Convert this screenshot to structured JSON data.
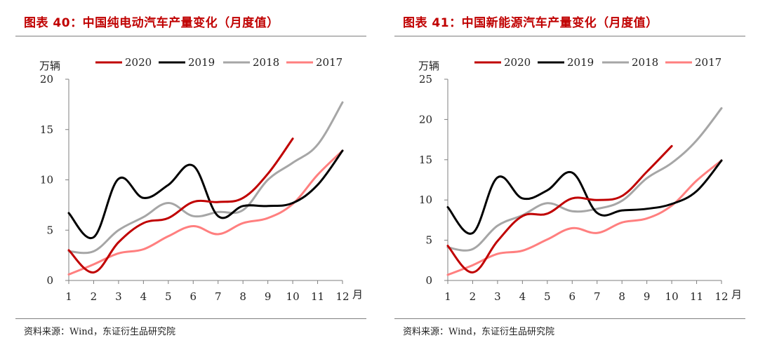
{
  "charts": [
    {
      "title": "图表 40：中国纯电动汽车产量变化（月度值）",
      "source": "资料来源：Wind，东证衍生品研究院",
      "chart_data": {
        "type": "line",
        "title": "图表 40：中国纯电动汽车产量变化（月度值）",
        "ylabel": "万辆",
        "xlabel": "月",
        "ylim": [
          0,
          20
        ],
        "yticks": [
          0,
          5,
          10,
          15,
          20
        ],
        "x": [
          1,
          2,
          3,
          4,
          5,
          6,
          7,
          8,
          9,
          10,
          11,
          12
        ],
        "legend_position": "top",
        "grid": false,
        "series": [
          {
            "name": "2020",
            "color": "#c00000",
            "values": [
              3.0,
              0.8,
              3.8,
              5.7,
              6.2,
              7.8,
              7.8,
              8.2,
              10.6,
              14.1,
              null,
              null
            ]
          },
          {
            "name": "2019",
            "color": "#000000",
            "values": [
              6.7,
              4.3,
              10.1,
              8.2,
              9.5,
              11.4,
              6.4,
              7.4,
              7.4,
              7.7,
              9.5,
              12.9
            ]
          },
          {
            "name": "2018",
            "color": "#a6a6a6",
            "values": [
              2.9,
              2.9,
              5.0,
              6.3,
              7.7,
              6.4,
              6.8,
              7.0,
              10.0,
              11.7,
              13.5,
              17.7
            ]
          },
          {
            "name": "2017",
            "color": "#ff7f7f",
            "values": [
              0.6,
              1.6,
              2.7,
              3.1,
              4.4,
              5.4,
              4.6,
              5.7,
              6.2,
              7.6,
              10.5,
              12.9
            ]
          }
        ]
      }
    },
    {
      "title": "图表 41：中国新能源汽车产量变化（月度值）",
      "source": "资料来源：Wind，东证衍生品研究院",
      "chart_data": {
        "type": "line",
        "title": "图表 41：中国新能源汽车产量变化（月度值）",
        "ylabel": "万辆",
        "xlabel": "月",
        "ylim": [
          0,
          25
        ],
        "yticks": [
          0,
          5,
          10,
          15,
          20,
          25
        ],
        "x": [
          1,
          2,
          3,
          4,
          5,
          6,
          7,
          8,
          9,
          10,
          11,
          12
        ],
        "legend_position": "top",
        "grid": false,
        "series": [
          {
            "name": "2020",
            "color": "#c00000",
            "values": [
              4.3,
              1.0,
              4.9,
              8.0,
              8.3,
              10.2,
              10.0,
              10.5,
              13.5,
              16.7,
              null,
              null
            ]
          },
          {
            "name": "2019",
            "color": "#000000",
            "values": [
              9.1,
              5.9,
              12.8,
              10.2,
              11.2,
              13.4,
              8.4,
              8.7,
              8.9,
              9.5,
              11.1,
              14.9
            ]
          },
          {
            "name": "2018",
            "color": "#a6a6a6",
            "values": [
              4.1,
              3.9,
              6.8,
              8.1,
              9.6,
              8.6,
              8.9,
              9.9,
              12.7,
              14.6,
              17.4,
              21.4
            ]
          },
          {
            "name": "2017",
            "color": "#ff7f7f",
            "values": [
              0.7,
              1.9,
              3.3,
              3.7,
              5.1,
              6.5,
              5.9,
              7.2,
              7.7,
              9.3,
              12.4,
              14.9
            ]
          }
        ]
      }
    }
  ]
}
